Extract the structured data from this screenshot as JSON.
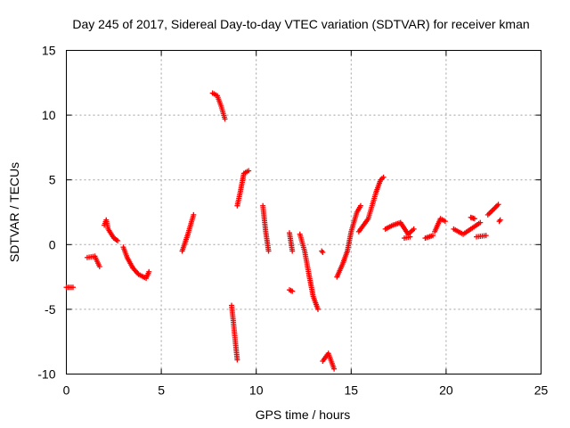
{
  "chart_data": {
    "type": "scatter",
    "title": "Day 245 of 2017, Sidereal Day-to-day VTEC variation (SDTVAR) for receiver kman",
    "xlabel": "GPS time / hours",
    "ylabel": "SDTVAR / TECUs",
    "xlim": [
      0,
      25
    ],
    "ylim": [
      -10,
      15
    ],
    "xticks": [
      0,
      5,
      10,
      15,
      20,
      25
    ],
    "yticks": [
      -10,
      -5,
      0,
      5,
      10,
      15
    ],
    "xtick_labels": [
      "0",
      "5",
      "10",
      "15",
      "20",
      "25"
    ],
    "ytick_labels": [
      "-10",
      "-5",
      "0",
      "5",
      "10",
      "15"
    ],
    "grid": true,
    "marker": "+",
    "color": "#ff0000",
    "segments": [
      {
        "x": [
          0.0,
          0.35
        ],
        "y": [
          -3.3,
          -3.3
        ]
      },
      {
        "x": [
          1.1,
          1.5,
          1.75
        ],
        "y": [
          -1.0,
          -0.9,
          -1.7
        ]
      },
      {
        "x": [
          2.0,
          2.1,
          2.2,
          2.5,
          2.7
        ],
        "y": [
          1.5,
          1.9,
          1.2,
          0.5,
          0.3
        ]
      },
      {
        "x": [
          3.0,
          3.2,
          3.5,
          3.8,
          4.2,
          4.35
        ],
        "y": [
          -0.2,
          -1.0,
          -1.8,
          -2.3,
          -2.6,
          -2.1
        ]
      },
      {
        "x": [
          6.1,
          6.4,
          6.7
        ],
        "y": [
          -0.5,
          0.8,
          2.3
        ]
      },
      {
        "x": [
          7.7,
          7.95,
          8.15,
          8.35
        ],
        "y": [
          11.7,
          11.5,
          10.7,
          9.7
        ]
      },
      {
        "x": [
          8.7,
          8.8,
          8.9,
          9.0
        ],
        "y": [
          -4.7,
          -6.0,
          -7.5,
          -8.9
        ]
      },
      {
        "x": [
          9.0,
          9.15,
          9.35,
          9.6
        ],
        "y": [
          3.0,
          4.0,
          5.5,
          5.7
        ]
      },
      {
        "x": [
          10.35,
          10.5,
          10.65
        ],
        "y": [
          3.0,
          1.0,
          -0.5
        ]
      },
      {
        "x": [
          11.75,
          11.9
        ],
        "y": [
          0.9,
          -0.5
        ]
      },
      {
        "x": [
          11.75,
          11.9
        ],
        "y": [
          -3.5,
          -3.6
        ]
      },
      {
        "x": [
          12.3,
          12.55,
          12.8,
          13.0,
          13.25
        ],
        "y": [
          0.8,
          -0.5,
          -2.5,
          -4.0,
          -5.0
        ]
      },
      {
        "x": [
          13.45,
          13.5
        ],
        "y": [
          -0.5,
          -0.6
        ]
      },
      {
        "x": [
          13.5,
          13.8,
          14.1
        ],
        "y": [
          -9.0,
          -8.4,
          -9.6
        ]
      },
      {
        "x": [
          14.25,
          14.55,
          14.8,
          15.0,
          15.3,
          15.5
        ],
        "y": [
          -2.5,
          -1.5,
          -0.5,
          1.0,
          2.5,
          3.0
        ]
      },
      {
        "x": [
          15.4,
          15.9,
          16.3,
          16.55,
          16.7
        ],
        "y": [
          1.0,
          2.0,
          4.0,
          5.0,
          5.2
        ]
      },
      {
        "x": [
          16.8,
          17.2,
          17.6,
          18.0,
          18.3
        ],
        "y": [
          1.2,
          1.5,
          1.7,
          0.8,
          1.2
        ]
      },
      {
        "x": [
          17.8,
          18.1
        ],
        "y": [
          0.5,
          0.6
        ]
      },
      {
        "x": [
          18.9,
          19.3
        ],
        "y": [
          0.5,
          0.7
        ]
      },
      {
        "x": [
          19.4,
          19.7,
          19.95
        ],
        "y": [
          1.0,
          2.0,
          1.8
        ]
      },
      {
        "x": [
          20.4,
          20.9,
          21.3,
          21.8
        ],
        "y": [
          1.2,
          0.8,
          1.2,
          1.7
        ]
      },
      {
        "x": [
          21.3,
          21.5
        ],
        "y": [
          2.1,
          2.0
        ]
      },
      {
        "x": [
          21.6,
          22.1
        ],
        "y": [
          0.6,
          0.7
        ]
      },
      {
        "x": [
          22.2,
          22.55,
          22.75
        ],
        "y": [
          2.3,
          2.8,
          3.1
        ]
      },
      {
        "x": [
          22.8,
          22.85
        ],
        "y": [
          1.8,
          1.9
        ]
      }
    ]
  }
}
